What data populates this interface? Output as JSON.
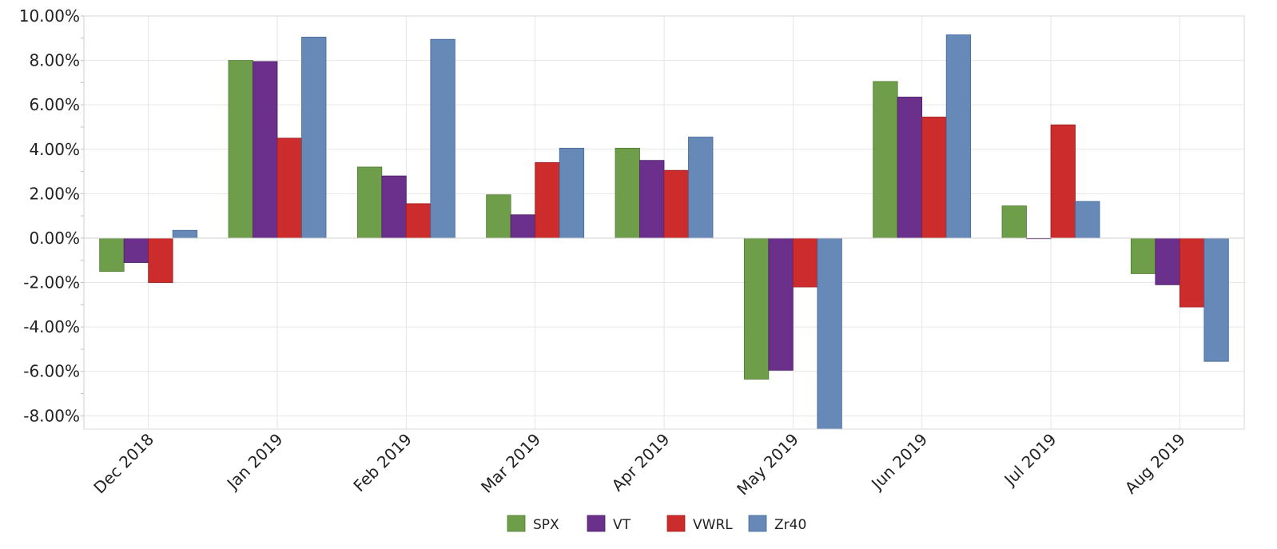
{
  "chart_data": {
    "type": "bar",
    "title": "",
    "xlabel": "",
    "ylabel": "",
    "categories": [
      "Dec 2018",
      "Jan 2019",
      "Feb 2019",
      "Mar 2019",
      "Apr 2019",
      "May 2019",
      "Jun 2019",
      "Jul 2019",
      "Aug 2019"
    ],
    "ylim": [
      -8.6,
      10
    ],
    "yticks": [
      10,
      8,
      6,
      4,
      2,
      0,
      -2,
      -4,
      -6,
      -8
    ],
    "ytick_labels": [
      "10.00%",
      "8.00%",
      "6.00%",
      "4.00%",
      "2.00%",
      "0.00%",
      "-2.00%",
      "-4.00%",
      "-6.00%",
      "-8.00%"
    ],
    "grid": true,
    "legend_position": "bottom",
    "series": [
      {
        "name": "SPX",
        "color": "#6f9e4a",
        "edge": "#4f7a30",
        "values": [
          -1.5,
          8.0,
          3.2,
          1.95,
          4.05,
          -6.35,
          7.05,
          1.45,
          -1.6
        ]
      },
      {
        "name": "VT",
        "color": "#6b2f8c",
        "edge": "#4a1f63",
        "values": [
          -1.1,
          7.95,
          2.8,
          1.05,
          3.5,
          -5.95,
          6.35,
          0.0,
          -2.1
        ]
      },
      {
        "name": "VWRL",
        "color": "#cc2c2c",
        "edge": "#9a1e1e",
        "values": [
          -2.0,
          4.5,
          1.55,
          3.4,
          3.05,
          -2.2,
          5.45,
          5.1,
          -3.1
        ]
      },
      {
        "name": "Zr40",
        "color": "#6789b8",
        "edge": "#45689a",
        "values": [
          0.35,
          9.05,
          8.95,
          4.05,
          4.55,
          -8.6,
          9.15,
          1.65,
          -5.55
        ]
      }
    ]
  }
}
